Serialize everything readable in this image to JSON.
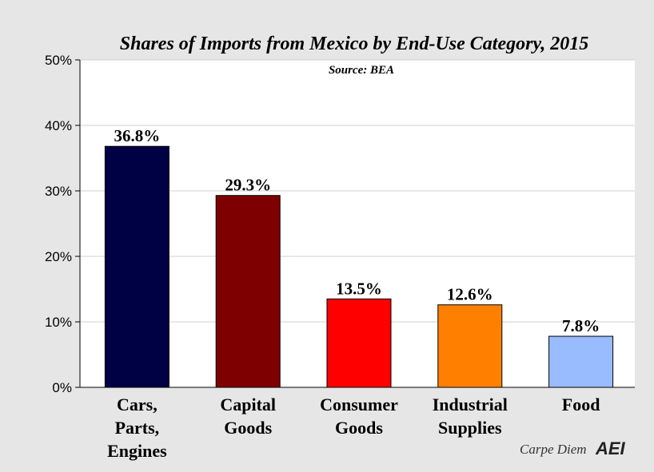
{
  "chart_data": {
    "type": "bar",
    "title": "Shares of Imports from Mexico by End-Use Category, 2015",
    "subtitle": "Source: BEA",
    "categories": [
      [
        "Cars,",
        "Parts,",
        "Engines"
      ],
      [
        "Capital",
        "Goods"
      ],
      [
        "Consumer",
        "Goods"
      ],
      [
        "Industrial",
        "Supplies"
      ],
      [
        "Food"
      ]
    ],
    "values": [
      36.8,
      29.3,
      13.5,
      12.6,
      7.8
    ],
    "data_labels": [
      "36.8%",
      "29.3%",
      "13.5%",
      "12.6%",
      "7.8%"
    ],
    "colors": [
      "#000044",
      "#7f0000",
      "#ff0000",
      "#ff8000",
      "#99bbff"
    ],
    "ylim": [
      0,
      50
    ],
    "yticks": [
      0,
      10,
      20,
      30,
      40,
      50
    ],
    "ytick_labels": [
      "0%",
      "10%",
      "20%",
      "30%",
      "40%",
      "50%"
    ],
    "grid": true,
    "legend": "none"
  },
  "credit": "Carpe Diem",
  "logo": "AEI"
}
